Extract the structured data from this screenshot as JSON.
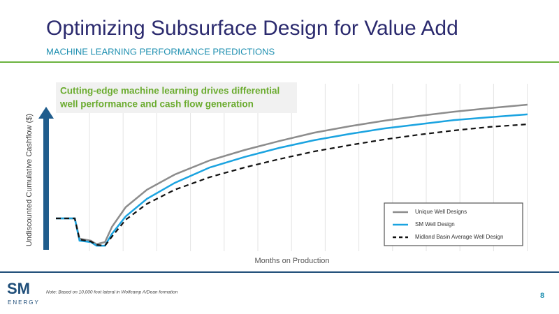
{
  "title": "Optimizing Subsurface Design for Value Add",
  "subtitle": "MACHINE LEARNING PERFORMANCE PREDICTIONS",
  "callout": [
    "Cutting-edge machine learning drives differential",
    "well performance and cash flow generation"
  ],
  "logo": {
    "name": "SM",
    "tagline": "ENERGY"
  },
  "note": "Note: Based on 10,000 foot lateral in Wolfcamp A/Dean formation",
  "page_number": "8",
  "chart_data": {
    "type": "line",
    "x_label": "Months on Production",
    "y_label": "Undiscounted Cumulative Cashflow ($)",
    "x": [
      0,
      4,
      5,
      7.4,
      8.6,
      10.4,
      11.9,
      14.8,
      19.3,
      25.2,
      32.6,
      40,
      47.4,
      54.8,
      62.2,
      69.6,
      77,
      84.4,
      91.9,
      100
    ],
    "xlim": [
      0,
      100
    ],
    "ylim": [
      0,
      100
    ],
    "grid": true,
    "legend": "lower right",
    "series": [
      {
        "name": "Unique Well Designs",
        "color": "#8c8c8c",
        "values": [
          19.6,
          19.6,
          7.5,
          6.3,
          4.2,
          5.4,
          14.6,
          26.3,
          36.7,
          45.8,
          54.2,
          60.4,
          65.8,
          70.8,
          74.6,
          77.9,
          80.8,
          83.3,
          85.4,
          87.5
        ]
      },
      {
        "name": "SM Well Design",
        "color": "#1aa3e0",
        "values": [
          19.6,
          19.6,
          6.3,
          5.4,
          3.3,
          3.3,
          10.4,
          20.8,
          31.3,
          40.8,
          50,
          56.3,
          61.7,
          66.3,
          70,
          73.3,
          75.8,
          78.3,
          80,
          81.7
        ]
      },
      {
        "name": "Midland Basin Average Well Design",
        "color": "#111111",
        "dashed": true,
        "values": [
          19.6,
          19.6,
          7,
          5.8,
          3.8,
          3.3,
          8.8,
          18.8,
          28.3,
          36.7,
          44.2,
          50,
          55,
          59.6,
          63.3,
          66.7,
          69.6,
          72.1,
          74.2,
          75.8
        ]
      }
    ]
  }
}
